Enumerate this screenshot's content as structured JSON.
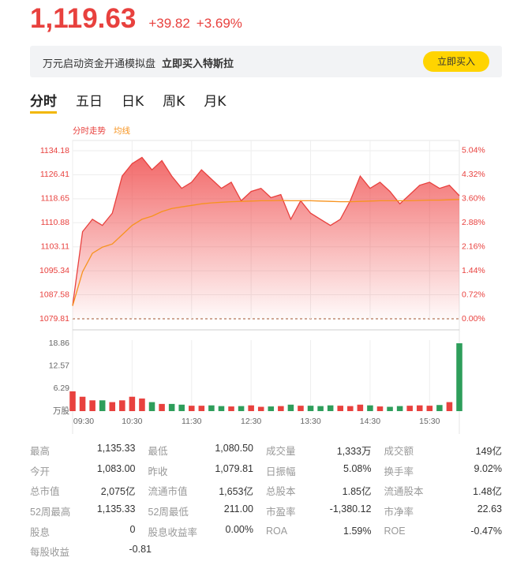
{
  "header": {
    "price": "1,119.63",
    "change": "+39.82",
    "change_pct": "+3.69%"
  },
  "banner": {
    "text": "万元启动资金开通模拟盘",
    "highlight": "立即买入特斯拉",
    "button": "立即买入"
  },
  "tabs": [
    "分时",
    "五日",
    "日K",
    "周K",
    "月K"
  ],
  "chart_data": [
    {
      "type": "line",
      "legend": [
        "分时走势",
        "均线"
      ],
      "categories": [
        "09:30",
        null,
        null,
        null,
        null,
        null,
        "10:30",
        null,
        null,
        null,
        null,
        null,
        "11:30",
        null,
        null,
        null,
        null,
        null,
        "12:30",
        null,
        null,
        null,
        null,
        null,
        "13:30",
        null,
        null,
        null,
        null,
        null,
        "14:30",
        null,
        null,
        null,
        null,
        null,
        "15:30",
        null,
        null,
        null
      ],
      "series": [
        {
          "name": "分时走势",
          "color": "#e8413e",
          "values": [
            1084,
            1108,
            1112,
            1110,
            1114,
            1126,
            1130,
            1132,
            1128,
            1131,
            1126,
            1122,
            1124,
            1128,
            1125,
            1122,
            1124,
            1118,
            1121,
            1122,
            1119,
            1120,
            1112,
            1118,
            1114,
            1112,
            1110,
            1112,
            1118,
            1126,
            1122,
            1124,
            1121,
            1117,
            1120,
            1123,
            1124,
            1122,
            1123,
            1119.63
          ]
        },
        {
          "name": "均线",
          "color": "#f7931e",
          "values": [
            1084,
            1095,
            1101,
            1103,
            1104,
            1107,
            1110,
            1112,
            1113,
            1114.5,
            1115.5,
            1116,
            1116.5,
            1117,
            1117.3,
            1117.5,
            1117.7,
            1117.8,
            1117.9,
            1118,
            1118,
            1118.1,
            1118,
            1118,
            1118,
            1117.9,
            1117.8,
            1117.7,
            1117.7,
            1117.8,
            1117.9,
            1118,
            1118,
            1118,
            1118,
            1118.1,
            1118.2,
            1118.2,
            1118.3,
            1118.4
          ]
        }
      ],
      "ylim": [
        1079.81,
        1137.5
      ],
      "yticks": [
        1079.81,
        1087.58,
        1095.34,
        1103.11,
        1110.88,
        1118.65,
        1126.41,
        1134.18
      ],
      "y2lim": [
        0,
        5.34
      ],
      "y2ticks": [
        {
          "value": 0,
          "label": "0.00%"
        },
        {
          "value": 0.72,
          "label": "0.72%"
        },
        {
          "value": 1.44,
          "label": "1.44%"
        },
        {
          "value": 2.16,
          "label": "2.16%"
        },
        {
          "value": 2.88,
          "label": "2.88%"
        },
        {
          "value": 3.6,
          "label": "3.60%"
        },
        {
          "value": 4.32,
          "label": "4.32%"
        },
        {
          "value": 5.04,
          "label": "5.04%"
        }
      ],
      "grid": true
    },
    {
      "type": "bar",
      "up_color": "#e8413e",
      "down_color": "#2e9e5b",
      "values": [
        5.5,
        4,
        3,
        3,
        2.5,
        3,
        4,
        3.5,
        2.5,
        2,
        2,
        1.8,
        1.5,
        1.5,
        1.6,
        1.4,
        1.3,
        1.4,
        1.6,
        1.2,
        1.3,
        1.4,
        1.8,
        1.5,
        1.5,
        1.4,
        1.6,
        1.5,
        1.4,
        1.8,
        1.6,
        1.3,
        1.2,
        1.4,
        1.5,
        1.6,
        1.5,
        1.7,
        2.5,
        18.86
      ],
      "ylim": [
        0,
        18.86
      ],
      "yticks": [
        {
          "value": 0,
          "label": "万股"
        },
        6.29,
        12.57,
        18.86
      ]
    }
  ],
  "stats": [
    [
      [
        "最高",
        "1,135.33"
      ],
      [
        "最低",
        "1,080.50"
      ],
      [
        "成交量",
        "1,333万"
      ],
      [
        "成交额",
        "149亿"
      ]
    ],
    [
      [
        "今开",
        "1,083.00"
      ],
      [
        "昨收",
        "1,079.81"
      ],
      [
        "日振幅",
        "5.08%"
      ],
      [
        "换手率",
        "9.02%"
      ]
    ],
    [
      [
        "总市值",
        "2,075亿"
      ],
      [
        "流通市值",
        "1,653亿"
      ],
      [
        "总股本",
        "1.85亿"
      ],
      [
        "流通股本",
        "1.48亿"
      ]
    ],
    [
      [
        "52周最高",
        "1,135.33"
      ],
      [
        "52周最低",
        "211.00"
      ],
      [
        "市盈率",
        "-1,380.12"
      ],
      [
        "市净率",
        "22.63"
      ]
    ],
    [
      [
        "股息",
        "0"
      ],
      [
        "股息收益率",
        "0.00%"
      ],
      [
        "ROA",
        "1.59%"
      ],
      [
        "ROE",
        "-0.47%"
      ]
    ],
    [
      [
        "每股收益",
        "-0.81"
      ]
    ]
  ]
}
